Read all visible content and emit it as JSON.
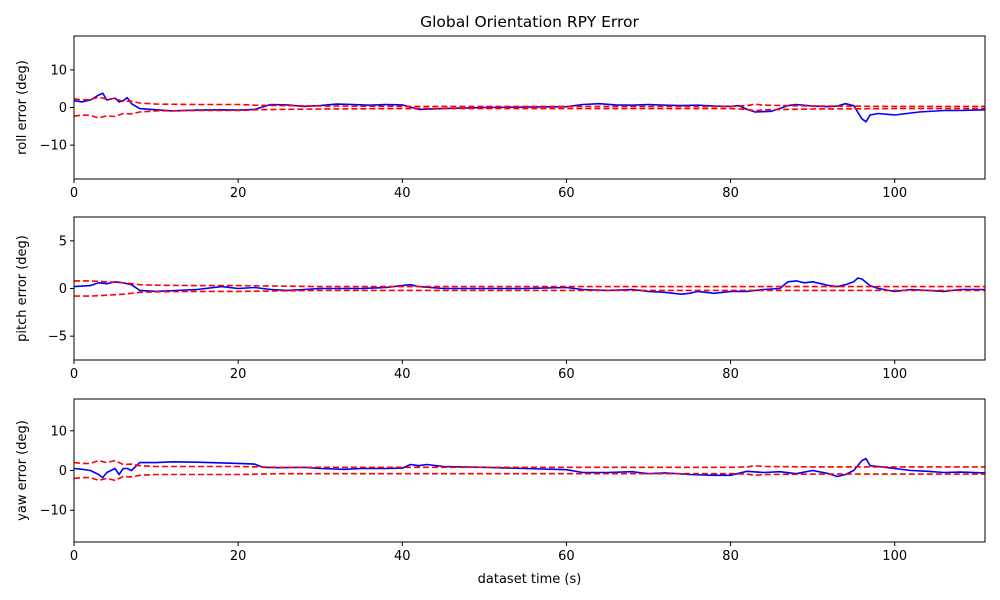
{
  "figure": {
    "title": "Global Orientation RPY Error",
    "xlabel": "dataset time (s)"
  },
  "colors": {
    "error_line": "#0000ff",
    "bound_line": "#ff0000",
    "axes": "#000000",
    "background": "#ffffff"
  },
  "chart_data": [
    {
      "type": "line",
      "title": "Global Orientation RPY Error",
      "xlabel": "",
      "ylabel": "roll error (deg)",
      "xlim": [
        0,
        111
      ],
      "ylim": [
        -19,
        19
      ],
      "xticks": [
        0,
        20,
        40,
        60,
        80,
        100
      ],
      "yticks": [
        -10,
        0,
        10
      ],
      "grid": false,
      "series": [
        {
          "style": "solid",
          "color": "#0000ff",
          "x": [
            0,
            1,
            2,
            3,
            3.5,
            4,
            5,
            5.5,
            6,
            6.5,
            7,
            8,
            10,
            12,
            15,
            18,
            20,
            22,
            24,
            26,
            28,
            30,
            32,
            34,
            36,
            38,
            40,
            42,
            45,
            50,
            55,
            60,
            62,
            64,
            66,
            68,
            70,
            72,
            74,
            76,
            78,
            80,
            81,
            82,
            83,
            85,
            87,
            88,
            90,
            92,
            93,
            94,
            95,
            96,
            96.5,
            97,
            98,
            100,
            103,
            106,
            108,
            111
          ],
          "values": [
            1.8,
            1.5,
            2.0,
            3.3,
            3.8,
            2.0,
            2.5,
            1.5,
            1.8,
            2.6,
            1.0,
            -0.3,
            -0.6,
            -0.9,
            -0.7,
            -0.6,
            -0.7,
            -0.5,
            0.8,
            0.7,
            0.3,
            0.5,
            0.9,
            0.8,
            0.6,
            0.8,
            0.7,
            -0.5,
            -0.3,
            0.0,
            0.1,
            0.2,
            0.8,
            1.0,
            0.7,
            0.6,
            0.8,
            0.6,
            0.5,
            0.6,
            0.4,
            0.3,
            0.5,
            -0.5,
            -1.2,
            -1.0,
            0.5,
            0.8,
            0.4,
            0.2,
            0.4,
            1.0,
            0.5,
            -3.0,
            -3.8,
            -2.0,
            -1.6,
            -2.0,
            -1.2,
            -0.8,
            -0.8,
            -0.6
          ]
        },
        {
          "style": "dashed",
          "color": "#ff0000",
          "x": [
            0,
            1,
            2,
            3,
            4,
            5,
            6,
            7,
            8,
            10,
            15,
            20,
            22,
            25,
            30,
            40,
            50,
            60,
            70,
            80,
            82,
            83,
            84,
            90,
            100,
            111
          ],
          "values": [
            2.3,
            2.0,
            2.1,
            2.8,
            2.2,
            2.4,
            1.6,
            1.7,
            1.2,
            0.9,
            0.8,
            0.8,
            0.6,
            0.5,
            0.4,
            0.3,
            0.3,
            0.3,
            0.3,
            0.3,
            0.5,
            0.9,
            0.6,
            0.4,
            0.3,
            0.3
          ]
        },
        {
          "style": "dashed",
          "color": "#ff0000",
          "x": [
            0,
            1,
            2,
            3,
            4,
            5,
            6,
            7,
            8,
            10,
            15,
            20,
            22,
            25,
            30,
            40,
            50,
            60,
            70,
            80,
            82,
            83,
            84,
            90,
            100,
            111
          ],
          "values": [
            -2.3,
            -2.0,
            -2.1,
            -2.8,
            -2.2,
            -2.4,
            -1.6,
            -1.7,
            -1.2,
            -0.9,
            -0.8,
            -0.8,
            -0.6,
            -0.5,
            -0.4,
            -0.3,
            -0.3,
            -0.3,
            -0.3,
            -0.3,
            -0.5,
            -0.9,
            -0.6,
            -0.4,
            -0.3,
            -0.3
          ]
        }
      ]
    },
    {
      "type": "line",
      "title": "",
      "xlabel": "",
      "ylabel": "pitch error (deg)",
      "xlim": [
        0,
        111
      ],
      "ylim": [
        -7.5,
        7.5
      ],
      "xticks": [
        0,
        20,
        40,
        60,
        80,
        100
      ],
      "yticks": [
        -5,
        0,
        5
      ],
      "grid": false,
      "series": [
        {
          "style": "solid",
          "color": "#0000ff",
          "x": [
            0,
            2,
            3,
            4,
            5,
            6,
            7,
            8,
            10,
            15,
            18,
            20,
            22,
            24,
            26,
            28,
            30,
            35,
            38,
            40,
            41,
            42,
            45,
            50,
            55,
            60,
            62,
            65,
            68,
            70,
            72,
            74,
            75,
            76,
            78,
            80,
            82,
            84,
            86,
            87,
            88,
            89,
            90,
            91,
            92,
            93,
            94,
            95,
            95.5,
            96,
            97,
            98,
            100,
            102,
            104,
            106,
            108,
            111
          ],
          "values": [
            0.2,
            0.3,
            0.6,
            0.5,
            0.7,
            0.6,
            0.4,
            -0.2,
            -0.3,
            -0.1,
            0.2,
            0.0,
            0.1,
            -0.1,
            -0.2,
            -0.1,
            0.0,
            0.0,
            0.1,
            0.3,
            0.4,
            0.2,
            0.0,
            0.0,
            0.0,
            0.1,
            -0.1,
            -0.2,
            -0.1,
            -0.3,
            -0.4,
            -0.6,
            -0.5,
            -0.3,
            -0.5,
            -0.3,
            -0.3,
            -0.1,
            0.0,
            0.7,
            0.8,
            0.6,
            0.7,
            0.5,
            0.3,
            0.2,
            0.4,
            0.7,
            1.1,
            1.0,
            0.3,
            0.0,
            -0.3,
            -0.1,
            -0.2,
            -0.3,
            -0.1,
            -0.1
          ]
        },
        {
          "style": "dashed",
          "color": "#ff0000",
          "x": [
            0,
            2,
            4,
            6,
            7,
            8,
            10,
            15,
            20,
            30,
            40,
            50,
            60,
            80,
            100,
            111
          ],
          "values": [
            0.8,
            0.8,
            0.7,
            0.6,
            0.5,
            0.4,
            0.35,
            0.3,
            0.3,
            0.2,
            0.2,
            0.2,
            0.2,
            0.2,
            0.2,
            0.2
          ]
        },
        {
          "style": "dashed",
          "color": "#ff0000",
          "x": [
            0,
            2,
            4,
            6,
            7,
            8,
            10,
            15,
            20,
            30,
            40,
            50,
            60,
            80,
            100,
            111
          ],
          "values": [
            -0.8,
            -0.8,
            -0.7,
            -0.6,
            -0.5,
            -0.4,
            -0.35,
            -0.3,
            -0.3,
            -0.2,
            -0.2,
            -0.2,
            -0.2,
            -0.2,
            -0.2,
            -0.2
          ]
        }
      ]
    },
    {
      "type": "line",
      "title": "",
      "xlabel": "dataset time (s)",
      "ylabel": "yaw error (deg)",
      "xlim": [
        0,
        111
      ],
      "ylim": [
        -18,
        18
      ],
      "xticks": [
        0,
        20,
        40,
        60,
        80,
        100
      ],
      "yticks": [
        -10,
        0,
        10
      ],
      "grid": false,
      "series": [
        {
          "style": "solid",
          "color": "#0000ff",
          "x": [
            0,
            1,
            2,
            3,
            3.5,
            4,
            5,
            5.5,
            6,
            6.5,
            7,
            8,
            10,
            12,
            15,
            20,
            22,
            23,
            25,
            28,
            30,
            33,
            35,
            38,
            40,
            41,
            42,
            43,
            45,
            50,
            55,
            60,
            62,
            65,
            68,
            70,
            72,
            75,
            78,
            80,
            82,
            84,
            86,
            88,
            90,
            92,
            93,
            94,
            95,
            96,
            96.5,
            97,
            98,
            100,
            102,
            104,
            106,
            108,
            111
          ],
          "values": [
            0.5,
            0.3,
            0.0,
            -1.0,
            -1.8,
            -0.5,
            0.5,
            -1.0,
            0.5,
            0.5,
            0.0,
            2.0,
            2.0,
            2.2,
            2.1,
            1.8,
            1.6,
            0.8,
            0.7,
            0.8,
            0.5,
            0.3,
            0.5,
            0.5,
            0.6,
            1.5,
            1.2,
            1.5,
            1.0,
            0.8,
            0.5,
            0.2,
            -0.5,
            -0.5,
            -0.3,
            -0.8,
            -0.6,
            -1.0,
            -1.2,
            -1.2,
            -0.2,
            -0.5,
            -0.3,
            -0.8,
            0.0,
            -0.8,
            -1.5,
            -1.0,
            0.0,
            2.5,
            3.0,
            1.2,
            1.0,
            0.5,
            0.0,
            -0.2,
            -0.5,
            -0.4,
            -0.6
          ]
        },
        {
          "style": "dashed",
          "color": "#ff0000",
          "x": [
            0,
            1,
            2,
            3,
            4,
            5,
            6,
            7,
            8,
            10,
            15,
            20,
            25,
            30,
            40,
            50,
            60,
            80,
            82,
            83,
            84,
            90,
            100,
            111
          ],
          "values": [
            2.0,
            1.8,
            1.8,
            2.5,
            2.0,
            2.5,
            1.5,
            1.6,
            1.2,
            1.0,
            1.0,
            1.0,
            0.8,
            0.8,
            0.8,
            0.8,
            0.8,
            0.8,
            0.9,
            1.2,
            1.0,
            0.9,
            0.9,
            0.9
          ]
        },
        {
          "style": "dashed",
          "color": "#ff0000",
          "x": [
            0,
            1,
            2,
            3,
            4,
            5,
            6,
            7,
            8,
            10,
            15,
            20,
            25,
            30,
            40,
            50,
            60,
            80,
            82,
            83,
            84,
            90,
            100,
            111
          ],
          "values": [
            -2.0,
            -1.8,
            -1.8,
            -2.5,
            -2.0,
            -2.5,
            -1.5,
            -1.6,
            -1.2,
            -1.0,
            -1.0,
            -1.0,
            -0.8,
            -0.8,
            -0.8,
            -0.8,
            -0.8,
            -0.8,
            -0.9,
            -1.2,
            -1.0,
            -0.9,
            -0.9,
            -0.9
          ]
        }
      ]
    }
  ]
}
